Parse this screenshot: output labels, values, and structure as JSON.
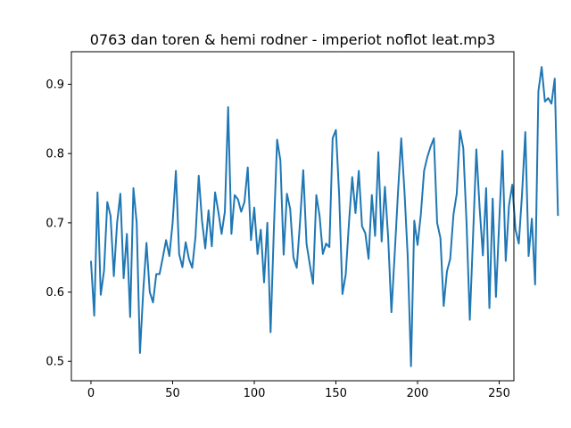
{
  "chart_data": {
    "type": "line",
    "title": "0763 dan toren & hemi rodner - imperiot noflot leat.mp3",
    "xlabel": "",
    "ylabel": "",
    "xlim": [
      -12,
      259
    ],
    "ylim": [
      0.472,
      0.947
    ],
    "xticks": [
      0,
      50,
      100,
      150,
      200,
      250
    ],
    "xtick_labels": [
      "0",
      "50",
      "100",
      "150",
      "200",
      "250"
    ],
    "yticks": [
      0.5,
      0.6,
      0.7,
      0.8,
      0.9
    ],
    "ytick_labels": [
      "0.5",
      "0.6",
      "0.7",
      "0.8",
      "0.9"
    ],
    "grid": false,
    "series_color": "#1f77b4",
    "x_start": 0,
    "x_step": 2,
    "values": [
      0.645,
      0.566,
      0.744,
      0.596,
      0.631,
      0.73,
      0.71,
      0.623,
      0.7,
      0.742,
      0.62,
      0.684,
      0.564,
      0.75,
      0.7,
      0.512,
      0.601,
      0.671,
      0.6,
      0.585,
      0.626,
      0.626,
      0.65,
      0.675,
      0.652,
      0.7,
      0.775,
      0.655,
      0.636,
      0.672,
      0.648,
      0.635,
      0.68,
      0.768,
      0.703,
      0.663,
      0.718,
      0.666,
      0.744,
      0.716,
      0.684,
      0.716,
      0.867,
      0.684,
      0.74,
      0.734,
      0.716,
      0.73,
      0.78,
      0.675,
      0.722,
      0.655,
      0.69,
      0.614,
      0.7,
      0.542,
      0.69,
      0.82,
      0.79,
      0.654,
      0.742,
      0.72,
      0.65,
      0.635,
      0.7,
      0.776,
      0.67,
      0.64,
      0.612,
      0.74,
      0.71,
      0.655,
      0.67,
      0.665,
      0.822,
      0.834,
      0.74,
      0.597,
      0.625,
      0.7,
      0.766,
      0.714,
      0.775,
      0.695,
      0.685,
      0.648,
      0.74,
      0.681,
      0.802,
      0.673,
      0.752,
      0.679,
      0.571,
      0.655,
      0.743,
      0.822,
      0.745,
      0.65,
      0.493,
      0.703,
      0.668,
      0.712,
      0.775,
      0.795,
      0.81,
      0.822,
      0.7,
      0.678,
      0.58,
      0.63,
      0.648,
      0.712,
      0.742,
      0.833,
      0.808,
      0.7,
      0.56,
      0.681,
      0.806,
      0.722,
      0.653,
      0.75,
      0.577,
      0.735,
      0.593,
      0.701,
      0.804,
      0.645,
      0.725,
      0.755,
      0.69,
      0.67,
      0.742,
      0.831,
      0.652,
      0.706,
      0.611,
      0.89,
      0.925,
      0.875,
      0.88,
      0.872,
      0.908,
      0.71
    ]
  }
}
